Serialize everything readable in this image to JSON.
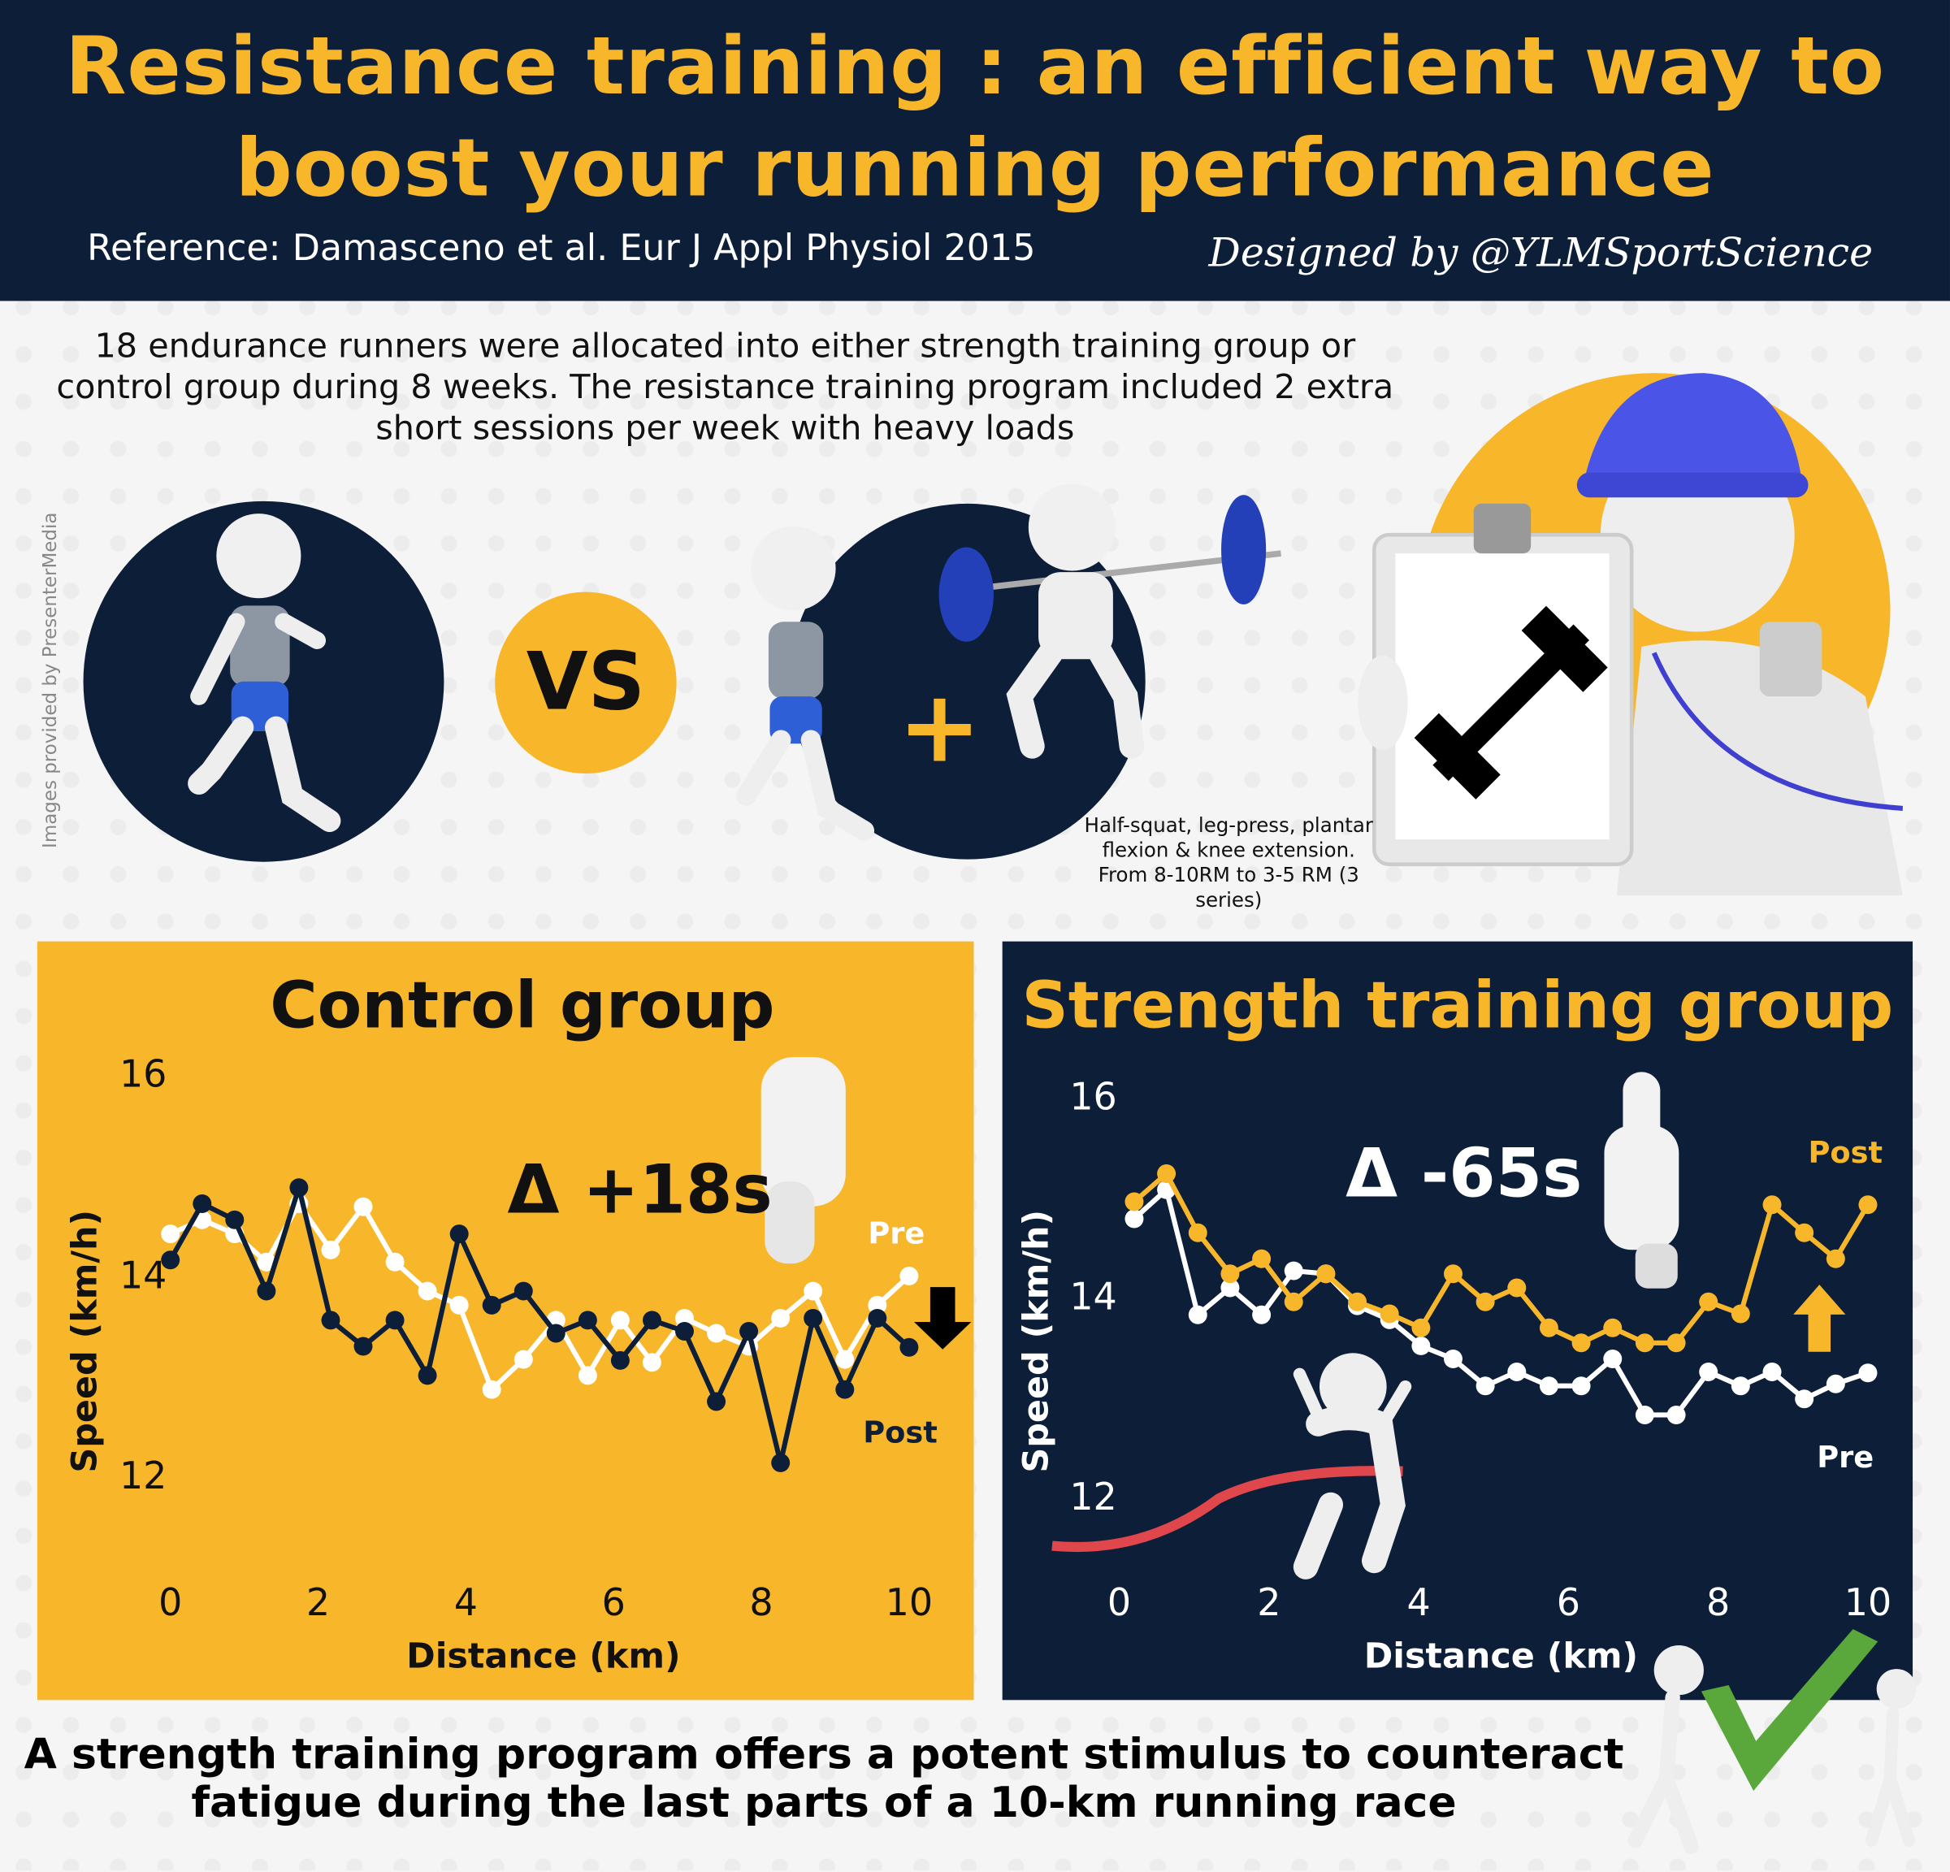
{
  "header": {
    "title_line1": "Resistance training : an efficient way to",
    "title_line2": "boost your running performance",
    "reference": "Reference: Damasceno et al. Eur J Appl Physiol 2015",
    "designed_by": "Designed by @YLMSportScience"
  },
  "intro": "18 endurance runners were allocated into either strength training group or control group during 8 weeks. The resistance training program included 2 extra short sessions per week with heavy loads",
  "watermark": "Images provided by PresenterMedia",
  "vs_label": "VS",
  "plus_label": "+",
  "exercise_note": "Half-squat, leg-press, plantar flexion & knee extension. From 8-10RM to 3-5 RM (3 series)",
  "conclusion": "A strength training program offers a potent stimulus to counteract fatigue during the last parts of a 10-km running race",
  "colors": {
    "navy": "#0c1e38",
    "yellow": "#f8b62a",
    "white": "#ffffff",
    "red_ribbon": "#e0474c",
    "green_check": "#5aa83c"
  },
  "icons": [
    "runner-figure",
    "weightlifter-figure",
    "coach-clipboard-figure",
    "dumbbell-icon",
    "whistle-icon",
    "thumbs-down-icon",
    "thumbs-up-icon",
    "arrow-down-icon",
    "arrow-up-icon",
    "finish-line-figure",
    "checkmark-figure"
  ],
  "chart_data": [
    {
      "type": "line",
      "title": "Control group",
      "xlabel": "Distance (km)",
      "ylabel": "Speed (km/h)",
      "xticks": [
        "0",
        "2",
        "4",
        "6",
        "8",
        "10"
      ],
      "yticks": [
        "16",
        "14",
        "12"
      ],
      "xlim": [
        0,
        10
      ],
      "ylim": [
        12,
        16
      ],
      "annotation": "Δ +18s",
      "trend_arrow": "down",
      "x": [
        0,
        0.43,
        0.87,
        1.3,
        1.74,
        2.17,
        2.61,
        3.04,
        3.48,
        3.91,
        4.35,
        4.78,
        5.22,
        5.65,
        6.09,
        6.52,
        6.96,
        7.39,
        7.83,
        8.26,
        8.7,
        9.13,
        9.57,
        10
      ],
      "series": [
        {
          "name": "Pre",
          "color": "#ffffff",
          "values": [
            14.45,
            14.59,
            14.45,
            14.17,
            14.75,
            14.29,
            14.72,
            14.17,
            13.88,
            13.74,
            12.9,
            13.2,
            13.59,
            13.04,
            13.59,
            13.17,
            13.61,
            13.46,
            13.33,
            13.61,
            13.88,
            13.2,
            13.74,
            14.03
          ]
        },
        {
          "name": "Post",
          "color": "#0c1e38",
          "values": [
            14.19,
            14.75,
            14.59,
            13.88,
            14.91,
            13.59,
            13.33,
            13.59,
            13.04,
            14.45,
            13.74,
            13.88,
            13.46,
            13.59,
            13.19,
            13.59,
            13.48,
            12.78,
            13.48,
            12.17,
            13.61,
            12.9,
            13.61,
            13.32
          ]
        }
      ]
    },
    {
      "type": "line",
      "title": "Strength training group",
      "xlabel": "Distance (km)",
      "ylabel": "Speed (km/h)",
      "xticks": [
        "0",
        "2",
        "4",
        "6",
        "8",
        "10"
      ],
      "yticks": [
        "16",
        "14",
        "12"
      ],
      "xlim": [
        0,
        10
      ],
      "ylim": [
        12,
        16
      ],
      "annotation": "Δ -65s",
      "trend_arrow": "up",
      "x": [
        0.2,
        0.63,
        1.05,
        1.48,
        1.9,
        2.33,
        2.76,
        3.18,
        3.61,
        4.03,
        4.46,
        4.89,
        5.31,
        5.74,
        6.17,
        6.59,
        7.02,
        7.44,
        7.87,
        8.3,
        8.72,
        9.15,
        9.57,
        10
      ],
      "series": [
        {
          "name": "Pre",
          "color": "#ffffff",
          "values": [
            14.82,
            15.11,
            13.86,
            14.13,
            13.86,
            14.3,
            14.27,
            13.95,
            13.81,
            13.55,
            13.42,
            13.15,
            13.29,
            13.15,
            13.15,
            13.42,
            12.86,
            12.86,
            13.29,
            13.15,
            13.29,
            13.02,
            13.17,
            13.28
          ]
        },
        {
          "name": "Post",
          "color": "#f8b62a",
          "values": [
            14.99,
            15.27,
            14.68,
            14.27,
            14.42,
            13.99,
            14.27,
            13.99,
            13.87,
            13.73,
            14.27,
            13.99,
            14.13,
            13.73,
            13.58,
            13.73,
            13.58,
            13.58,
            13.99,
            13.87,
            14.96,
            14.68,
            14.42,
            14.96
          ]
        }
      ]
    }
  ]
}
